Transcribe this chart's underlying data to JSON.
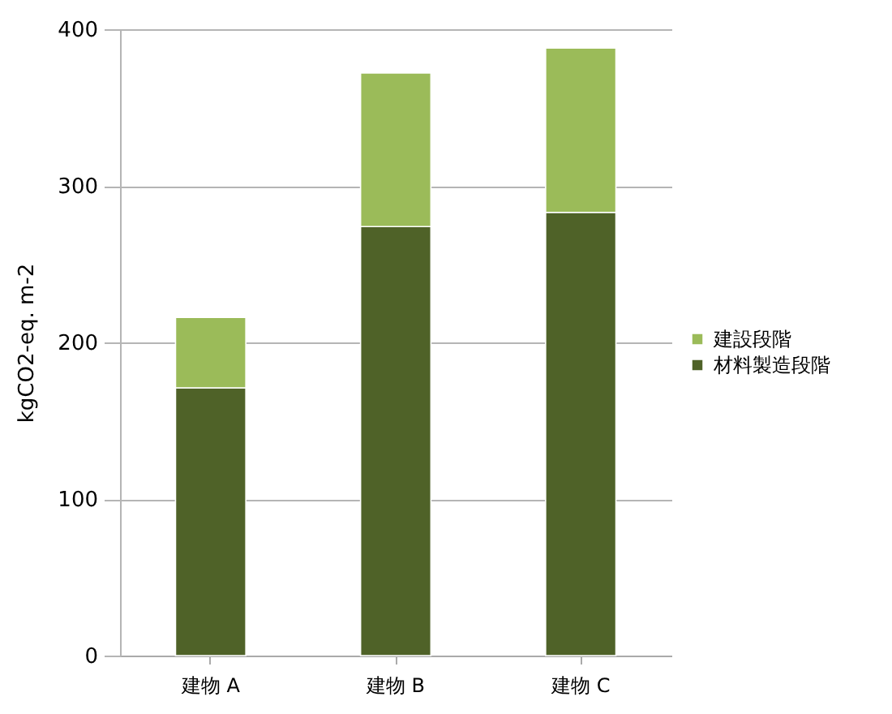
{
  "chart_data": {
    "type": "bar",
    "stacked": true,
    "categories": [
      "建物 A",
      "建物 B",
      "建物 C"
    ],
    "ylabel": "kgCO2-eq. m-2",
    "ylim": [
      0,
      400
    ],
    "yticks": [
      0,
      100,
      200,
      300,
      400
    ],
    "grid": "y",
    "legend": "right",
    "series": [
      {
        "name": "材料製造段階",
        "color": "#4f6228",
        "values": [
          171,
          274,
          283
        ]
      },
      {
        "name": "建設段階",
        "color": "#9bbb59",
        "values": [
          45,
          98,
          105
        ]
      }
    ]
  }
}
